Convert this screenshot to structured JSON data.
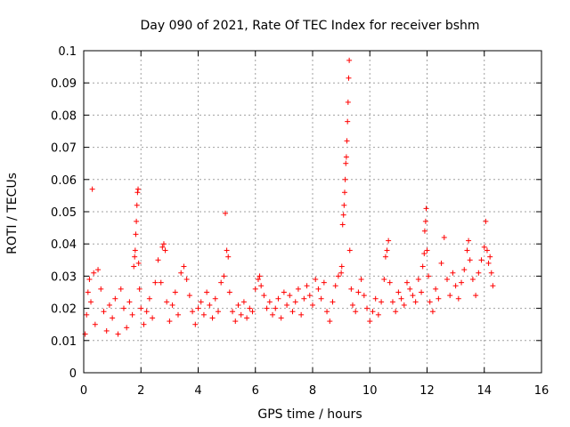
{
  "chart_data": {
    "type": "scatter",
    "title": "Day 090 of 2021, Rate Of TEC Index for receiver bshm",
    "xlabel": "GPS time / hours",
    "ylabel": "ROTI / TECUs",
    "xlim": [
      0,
      16
    ],
    "ylim": [
      0,
      0.1
    ],
    "xticks": [
      "0",
      "2",
      "4",
      "6",
      "8",
      "10",
      "12",
      "14",
      "16"
    ],
    "yticks": [
      "0",
      "0.01",
      "0.02",
      "0.03",
      "0.04",
      "0.05",
      "0.06",
      "0.07",
      "0.08",
      "0.09",
      "0.1"
    ],
    "grid": true,
    "marker": "+",
    "series_color": "#ff0000",
    "series": [
      {
        "name": "ROTI",
        "points": [
          [
            0.05,
            0.012
          ],
          [
            0.1,
            0.018
          ],
          [
            0.15,
            0.025
          ],
          [
            0.2,
            0.029
          ],
          [
            0.25,
            0.022
          ],
          [
            0.3,
            0.057
          ],
          [
            0.35,
            0.031
          ],
          [
            0.4,
            0.015
          ],
          [
            0.5,
            0.032
          ],
          [
            0.6,
            0.026
          ],
          [
            0.7,
            0.019
          ],
          [
            0.8,
            0.013
          ],
          [
            0.9,
            0.021
          ],
          [
            1.0,
            0.017
          ],
          [
            1.1,
            0.023
          ],
          [
            1.2,
            0.012
          ],
          [
            1.3,
            0.026
          ],
          [
            1.4,
            0.02
          ],
          [
            1.5,
            0.014
          ],
          [
            1.6,
            0.022
          ],
          [
            1.7,
            0.018
          ],
          [
            1.75,
            0.033
          ],
          [
            1.78,
            0.036
          ],
          [
            1.8,
            0.038
          ],
          [
            1.82,
            0.043
          ],
          [
            1.84,
            0.047
          ],
          [
            1.86,
            0.052
          ],
          [
            1.88,
            0.056
          ],
          [
            1.9,
            0.057
          ],
          [
            1.92,
            0.034
          ],
          [
            1.95,
            0.026
          ],
          [
            2.0,
            0.02
          ],
          [
            2.1,
            0.015
          ],
          [
            2.2,
            0.019
          ],
          [
            2.3,
            0.023
          ],
          [
            2.4,
            0.017
          ],
          [
            2.5,
            0.028
          ],
          [
            2.6,
            0.035
          ],
          [
            2.7,
            0.028
          ],
          [
            2.75,
            0.039
          ],
          [
            2.8,
            0.04
          ],
          [
            2.85,
            0.038
          ],
          [
            2.9,
            0.022
          ],
          [
            3.0,
            0.016
          ],
          [
            3.1,
            0.021
          ],
          [
            3.2,
            0.025
          ],
          [
            3.3,
            0.018
          ],
          [
            3.4,
            0.031
          ],
          [
            3.5,
            0.033
          ],
          [
            3.6,
            0.029
          ],
          [
            3.7,
            0.024
          ],
          [
            3.8,
            0.019
          ],
          [
            3.9,
            0.015
          ],
          [
            4.0,
            0.02
          ],
          [
            4.1,
            0.022
          ],
          [
            4.2,
            0.018
          ],
          [
            4.3,
            0.025
          ],
          [
            4.4,
            0.021
          ],
          [
            4.5,
            0.017
          ],
          [
            4.6,
            0.023
          ],
          [
            4.7,
            0.019
          ],
          [
            4.8,
            0.028
          ],
          [
            4.9,
            0.03
          ],
          [
            4.95,
            0.0495
          ],
          [
            5.0,
            0.038
          ],
          [
            5.05,
            0.036
          ],
          [
            5.1,
            0.025
          ],
          [
            5.2,
            0.019
          ],
          [
            5.3,
            0.016
          ],
          [
            5.4,
            0.021
          ],
          [
            5.5,
            0.018
          ],
          [
            5.6,
            0.022
          ],
          [
            5.7,
            0.017
          ],
          [
            5.8,
            0.02
          ],
          [
            5.9,
            0.019
          ],
          [
            6.0,
            0.026
          ],
          [
            6.1,
            0.029
          ],
          [
            6.15,
            0.03
          ],
          [
            6.2,
            0.027
          ],
          [
            6.3,
            0.024
          ],
          [
            6.4,
            0.02
          ],
          [
            6.5,
            0.022
          ],
          [
            6.6,
            0.018
          ],
          [
            6.7,
            0.02
          ],
          [
            6.8,
            0.023
          ],
          [
            6.9,
            0.017
          ],
          [
            7.0,
            0.025
          ],
          [
            7.1,
            0.021
          ],
          [
            7.2,
            0.024
          ],
          [
            7.3,
            0.019
          ],
          [
            7.4,
            0.022
          ],
          [
            7.5,
            0.026
          ],
          [
            7.6,
            0.018
          ],
          [
            7.7,
            0.023
          ],
          [
            7.8,
            0.027
          ],
          [
            7.9,
            0.024
          ],
          [
            8.0,
            0.021
          ],
          [
            8.1,
            0.029
          ],
          [
            8.2,
            0.026
          ],
          [
            8.3,
            0.023
          ],
          [
            8.4,
            0.028
          ],
          [
            8.5,
            0.019
          ],
          [
            8.6,
            0.016
          ],
          [
            8.7,
            0.022
          ],
          [
            8.8,
            0.027
          ],
          [
            8.9,
            0.03
          ],
          [
            9.0,
            0.031
          ],
          [
            9.02,
            0.033
          ],
          [
            9.05,
            0.046
          ],
          [
            9.08,
            0.049
          ],
          [
            9.1,
            0.052
          ],
          [
            9.12,
            0.056
          ],
          [
            9.14,
            0.06
          ],
          [
            9.16,
            0.065
          ],
          [
            9.18,
            0.067
          ],
          [
            9.2,
            0.072
          ],
          [
            9.22,
            0.078
          ],
          [
            9.24,
            0.084
          ],
          [
            9.26,
            0.0915
          ],
          [
            9.28,
            0.097
          ],
          [
            9.3,
            0.038
          ],
          [
            9.35,
            0.026
          ],
          [
            9.4,
            0.021
          ],
          [
            9.5,
            0.019
          ],
          [
            9.6,
            0.025
          ],
          [
            9.7,
            0.029
          ],
          [
            9.8,
            0.024
          ],
          [
            9.9,
            0.02
          ],
          [
            10.0,
            0.016
          ],
          [
            10.1,
            0.019
          ],
          [
            10.2,
            0.023
          ],
          [
            10.3,
            0.018
          ],
          [
            10.4,
            0.022
          ],
          [
            10.5,
            0.029
          ],
          [
            10.55,
            0.036
          ],
          [
            10.6,
            0.038
          ],
          [
            10.65,
            0.041
          ],
          [
            10.7,
            0.028
          ],
          [
            10.8,
            0.022
          ],
          [
            10.9,
            0.019
          ],
          [
            11.0,
            0.025
          ],
          [
            11.1,
            0.023
          ],
          [
            11.2,
            0.021
          ],
          [
            11.3,
            0.028
          ],
          [
            11.4,
            0.026
          ],
          [
            11.5,
            0.024
          ],
          [
            11.6,
            0.022
          ],
          [
            11.7,
            0.029
          ],
          [
            11.8,
            0.025
          ],
          [
            11.85,
            0.033
          ],
          [
            11.9,
            0.037
          ],
          [
            11.92,
            0.044
          ],
          [
            11.95,
            0.047
          ],
          [
            11.97,
            0.051
          ],
          [
            12.0,
            0.038
          ],
          [
            12.05,
            0.03
          ],
          [
            12.1,
            0.022
          ],
          [
            12.2,
            0.019
          ],
          [
            12.3,
            0.026
          ],
          [
            12.4,
            0.023
          ],
          [
            12.5,
            0.034
          ],
          [
            12.6,
            0.042
          ],
          [
            12.7,
            0.029
          ],
          [
            12.8,
            0.024
          ],
          [
            12.9,
            0.031
          ],
          [
            13.0,
            0.027
          ],
          [
            13.1,
            0.023
          ],
          [
            13.2,
            0.028
          ],
          [
            13.3,
            0.032
          ],
          [
            13.4,
            0.038
          ],
          [
            13.45,
            0.041
          ],
          [
            13.5,
            0.035
          ],
          [
            13.6,
            0.029
          ],
          [
            13.7,
            0.024
          ],
          [
            13.8,
            0.031
          ],
          [
            13.9,
            0.035
          ],
          [
            14.0,
            0.039
          ],
          [
            14.05,
            0.047
          ],
          [
            14.1,
            0.038
          ],
          [
            14.15,
            0.034
          ],
          [
            14.2,
            0.036
          ],
          [
            14.25,
            0.031
          ],
          [
            14.3,
            0.027
          ]
        ]
      }
    ]
  }
}
